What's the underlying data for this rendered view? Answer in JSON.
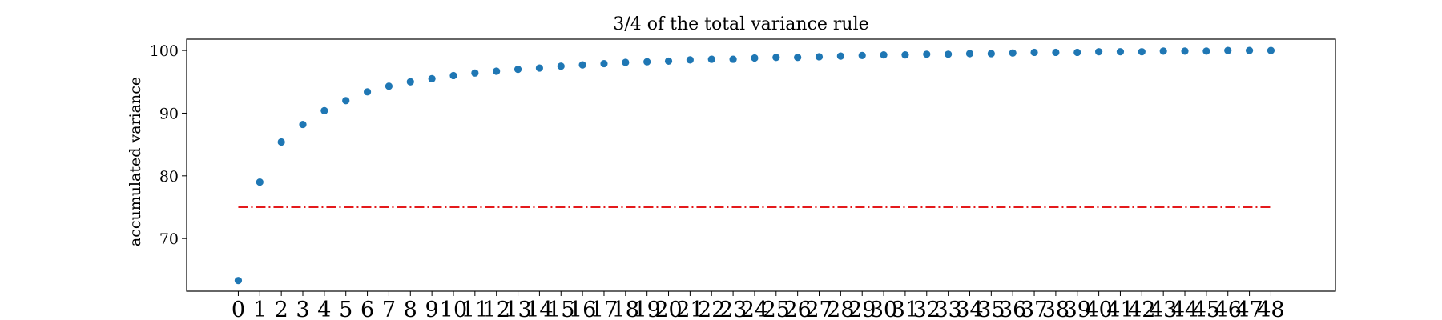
{
  "chart_data": {
    "type": "scatter",
    "title": "3/4 of the total variance rule",
    "xlabel": "",
    "ylabel": "accumulated variance",
    "x": [
      0,
      1,
      2,
      3,
      4,
      5,
      6,
      7,
      8,
      9,
      10,
      11,
      12,
      13,
      14,
      15,
      16,
      17,
      18,
      19,
      20,
      21,
      22,
      23,
      24,
      25,
      26,
      27,
      28,
      29,
      30,
      31,
      32,
      33,
      34,
      35,
      36,
      37,
      38,
      39,
      40,
      41,
      42,
      43,
      44,
      45,
      46,
      47,
      48
    ],
    "xticks": [
      "0",
      "1",
      "2",
      "3",
      "4",
      "5",
      "6",
      "7",
      "8",
      "9",
      "10",
      "11",
      "12",
      "13",
      "14",
      "15",
      "16",
      "17",
      "18",
      "19",
      "20",
      "21",
      "22",
      "23",
      "24",
      "25",
      "26",
      "27",
      "28",
      "29",
      "30",
      "31",
      "32",
      "33",
      "34",
      "35",
      "36",
      "37",
      "38",
      "39",
      "40",
      "41",
      "42",
      "43",
      "44",
      "45",
      "46",
      "47",
      "48"
    ],
    "series": [
      {
        "values": [
          63.3,
          79.0,
          85.4,
          88.2,
          90.4,
          92.0,
          93.4,
          94.3,
          95.0,
          95.5,
          96.0,
          96.4,
          96.7,
          97.0,
          97.2,
          97.5,
          97.7,
          97.9,
          98.1,
          98.2,
          98.3,
          98.5,
          98.6,
          98.6,
          98.8,
          98.9,
          98.9,
          99.0,
          99.1,
          99.2,
          99.3,
          99.3,
          99.4,
          99.4,
          99.5,
          99.5,
          99.6,
          99.7,
          99.7,
          99.7,
          99.8,
          99.8,
          99.8,
          99.9,
          99.9,
          99.9,
          100.0,
          100.0,
          100.0
        ],
        "color": "#1f77b4"
      }
    ],
    "threshold": {
      "value": 75,
      "x_start": 0,
      "x_end": 48,
      "color": "#e41a1c",
      "style": "dash-dot"
    },
    "yticks": [
      70,
      80,
      90,
      100
    ],
    "ylim": [
      61.6,
      101.8
    ],
    "xlim": [
      -2.4,
      51.0
    ],
    "grid": false,
    "legend": "none"
  }
}
